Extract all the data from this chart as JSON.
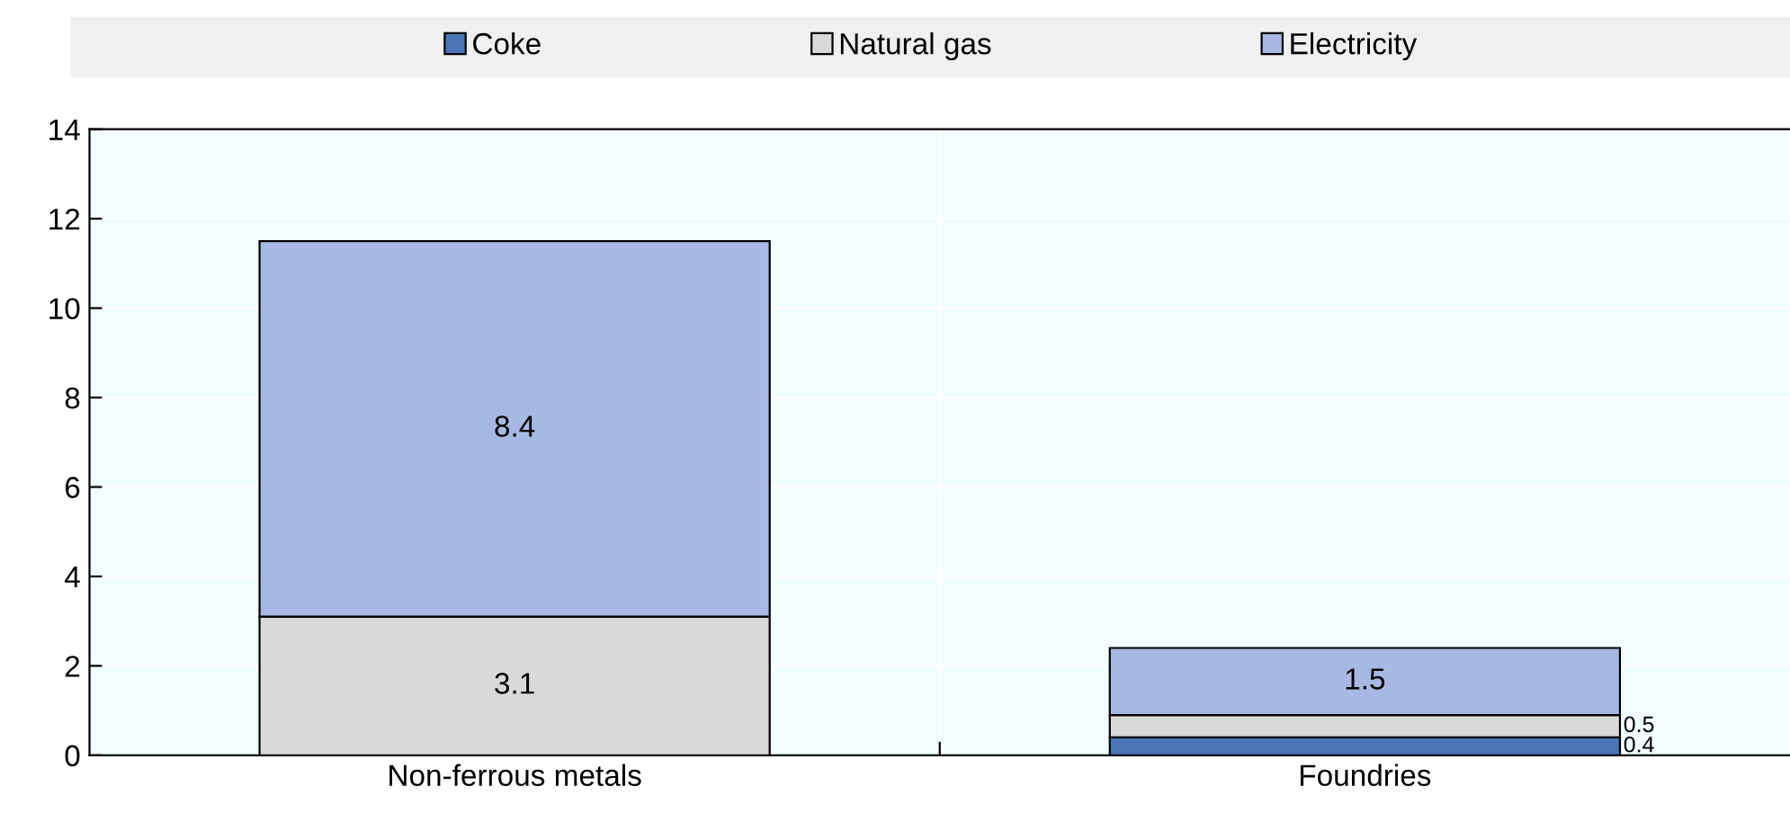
{
  "chart_data": {
    "type": "bar",
    "stacked": true,
    "categories": [
      "Non-ferrous metals",
      "Foundries"
    ],
    "series": [
      {
        "name": "Coke",
        "color": "#4a76b8",
        "values": [
          null,
          0.4
        ],
        "value_labels": [
          null,
          "0.4"
        ]
      },
      {
        "name": "Natural gas",
        "color": "#d9d9d9",
        "values": [
          3.1,
          0.5
        ],
        "value_labels": [
          "3.1",
          "0.5"
        ]
      },
      {
        "name": "Electricity",
        "color": "#a7b8e2",
        "values": [
          8.4,
          1.5
        ],
        "value_labels": [
          "8.4",
          "1.5"
        ]
      }
    ],
    "ylim": [
      0,
      14
    ],
    "yticks": [
      0,
      2,
      4,
      6,
      8,
      10,
      12,
      14
    ],
    "grid": true,
    "legend": "top"
  }
}
